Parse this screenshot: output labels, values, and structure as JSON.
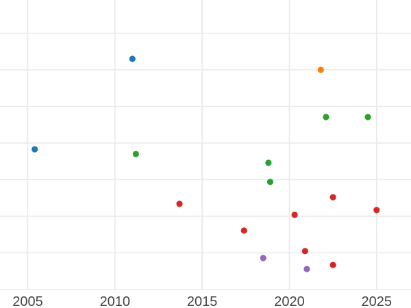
{
  "chart_data": {
    "type": "scatter",
    "title": "",
    "xlabel": "",
    "ylabel": "",
    "x_tick_labels": [
      "2005",
      "2010",
      "2015",
      "2020",
      "2025"
    ],
    "x_ticks": [
      2005,
      2010,
      2015,
      2020,
      2025
    ],
    "x_range": [
      2003.4,
      2027.0
    ],
    "y_gridline_units": [
      0,
      1,
      2,
      3,
      4,
      5,
      6,
      7
    ],
    "y_units_note": "y axis has no visible labels; values are estimated in gridline units (bottom gridline = 0, one unit per gridline)",
    "grid": true,
    "legend_position": "none",
    "series": [
      {
        "name": "blue",
        "color": "#1f77b4",
        "points": [
          {
            "x": 2005.4,
            "y": 3.83
          },
          {
            "x": 2011.0,
            "y": 6.3
          }
        ]
      },
      {
        "name": "orange",
        "color": "#ff7f0e",
        "points": [
          {
            "x": 2021.8,
            "y": 6.0
          }
        ]
      },
      {
        "name": "green",
        "color": "#2ca02c",
        "points": [
          {
            "x": 2011.2,
            "y": 3.7
          },
          {
            "x": 2018.8,
            "y": 3.46
          },
          {
            "x": 2018.9,
            "y": 2.94
          },
          {
            "x": 2022.1,
            "y": 4.71
          },
          {
            "x": 2024.5,
            "y": 4.71
          }
        ]
      },
      {
        "name": "red",
        "color": "#d62728",
        "points": [
          {
            "x": 2013.7,
            "y": 2.34
          },
          {
            "x": 2017.4,
            "y": 1.61
          },
          {
            "x": 2020.3,
            "y": 2.04
          },
          {
            "x": 2020.9,
            "y": 1.05
          },
          {
            "x": 2022.5,
            "y": 2.52
          },
          {
            "x": 2022.5,
            "y": 0.67
          },
          {
            "x": 2025.0,
            "y": 2.17
          }
        ]
      },
      {
        "name": "purple",
        "color": "#9467bd",
        "points": [
          {
            "x": 2018.5,
            "y": 0.86
          },
          {
            "x": 2021.0,
            "y": 0.56
          }
        ]
      }
    ],
    "colors": {
      "background": "#ffffff",
      "gridline": "#e9e9e9",
      "tick_label": "#444444"
    }
  }
}
